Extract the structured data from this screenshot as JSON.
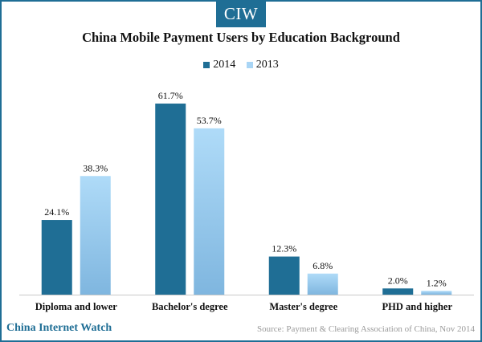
{
  "header": {
    "logo_text": "CIW"
  },
  "footer": {
    "brand": "China Internet Watch",
    "source": "Source: Payment & Clearing Association of China, Nov 2014"
  },
  "colors": {
    "series_2014": "#1f6e95",
    "series_2013": "#a9d5f5",
    "frame": "#1f6e95"
  },
  "chart_data": {
    "type": "bar",
    "title": "China Mobile Payment Users by Education Background",
    "xlabel": "",
    "ylabel": "",
    "categories": [
      "Diploma and lower",
      "Bachelor's degree",
      "Master's degree",
      "PHD and higher"
    ],
    "series": [
      {
        "name": "2014",
        "values": [
          24.1,
          61.7,
          12.3,
          2.0
        ],
        "labels": [
          "24.1%",
          "61.7%",
          "12.3%",
          "2.0%"
        ]
      },
      {
        "name": "2013",
        "values": [
          38.3,
          53.7,
          6.8,
          1.2
        ],
        "labels": [
          "38.3%",
          "53.7%",
          "6.8%",
          "1.2%"
        ]
      }
    ],
    "ylim": [
      0,
      70
    ],
    "grid": false,
    "legend": "top-center"
  }
}
